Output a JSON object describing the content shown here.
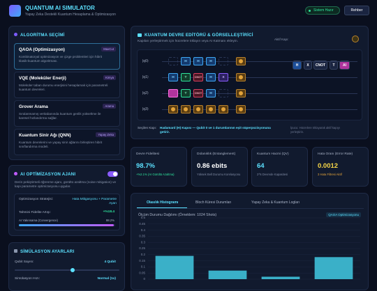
{
  "header": {
    "title": "QUANTUM AI SIMULATOR",
    "subtitle": "Yapay Zeka Destekli Kuantum Hesaplama & Optimizasyon",
    "status": "Sistem Hazır",
    "guide": "Rehber"
  },
  "algorithms": {
    "title": "ALGORİTMA SEÇİMİ",
    "items": [
      {
        "name": "QAOA (Optimizasyon)",
        "tag": "MaxCut",
        "desc": "Kombinatoryal optimizasyon ve çizge problemleri için hibrit klasik-kuantum algoritması."
      },
      {
        "name": "VQE (Moleküler Enerji)",
        "tag": "Kimya",
        "desc": "Moleküler taban durumu enerjisini hesaplamak için parametreli kuantum devreleri."
      },
      {
        "name": "Grover Arama",
        "tag": "Arama",
        "desc": "Sıralanmamış veritabanında kuantum genlik yükseltme ile karesel hızlandırma sağlar."
      },
      {
        "name": "Kuantum Sinir Ağı (QNN)",
        "tag": "Yapay Zeka",
        "desc": "Kuantum devrelerini ve yapay sinir ağlarını birleştiren hibrit sınıflandırma modeli."
      }
    ]
  },
  "agent": {
    "title": "AI OPTİMİZASYON AJANI",
    "desc": "Derin pekiştirmeli öğrenme ajanı, gürültü azaltma (noise mitigation) ve kapı parametre optimizasyonu uygular.",
    "strategy_label": "Optimizasyon Stratejisi:",
    "strategy": "Hata Mitigasyonu + Parametre Ayarı",
    "gain_label": "Tahmini Fidelite Artışı:",
    "gain": "+%18.4",
    "convergence_label": "AI Yakınsama (Convergence)",
    "convergence": 98.2,
    "convergence_label_value": "98.2%"
  },
  "settings": {
    "title": "SİMÜLASYON AYARLARI",
    "qubits_label": "Qubit Sayısı:",
    "qubits": "4 Qubit",
    "speed_label": "Simülasyon Hızı:",
    "speed": "Normal (1x)"
  },
  "circuit": {
    "title": "KUANTUM DEVRE EDİTÖRÜ & GÖRSELLEŞTİRİCİ",
    "subtitle": "Kapıları yerleştirmek için hücrelere tıklayın veya AI Katmanı ekleyin.",
    "active_label": "Aktif Kapı:",
    "toolbar": [
      "H",
      "X",
      "CNOT",
      "T",
      "AI"
    ],
    "rows": [
      {
        "label": "|q0⟩",
        "cells": [
          null,
          "H",
          "H",
          "H",
          null
        ]
      },
      {
        "label": "|q1⟩",
        "cells": [
          "H",
          "T",
          "CNOT",
          "H",
          "X"
        ]
      },
      {
        "label": "|q2⟩",
        "cells": [
          null,
          "T",
          "CNOT",
          "H",
          null
        ]
      },
      {
        "label": "|q3⟩",
        "cells": [
          null,
          null,
          null,
          null,
          null
        ]
      }
    ],
    "selected_label": "Seçilen Kapı:",
    "selected": "Hadamard (H) Kapısı — Qubit 0 ve 1 durumlarının eşit süperpozisyonuna getirir.",
    "hint": "İpucu: Hücrelere tıklayarak aktif kapıyı yerleştirin."
  },
  "metrics": [
    {
      "label": "Devre Fidelitesi",
      "value": "98.7%",
      "note": "+%2.1% (AI Gürültü Azaltma)"
    },
    {
      "label": "Dolanıklık (Entanglement)",
      "value": "0.86 ebits",
      "note": "Yüksek Bell Durumu Korelasyonu"
    },
    {
      "label": "Kuantum Hacmi (QV)",
      "value": "64",
      "note": "2^6 Devrede Kapasitesi"
    },
    {
      "label": "Hata Oranı (Error Rate)",
      "value": "0.0012",
      "note": "3 Hata Filtresi Aktif"
    }
  ],
  "tabs": [
    "Olasılık Histogramı",
    "Bloch Küresi Durumları",
    "Yapay Zeka & Kuantum Logları"
  ],
  "chart_data": {
    "type": "bar",
    "title": "Ölçüm Durumu Dağılımı (Örneklem: 1024 Shots)",
    "badge": "QAOA Optimizasyonu",
    "categories": [
      null,
      null,
      null,
      null
    ],
    "values": [
      0.19,
      0.07,
      0.02,
      0.18
    ],
    "color": "#3fc1d9",
    "ylim": [
      0,
      0.5
    ],
    "yticks": [
      0,
      0.05,
      0.1,
      0.15,
      0.2,
      0.25,
      0.3,
      0.35,
      0.4,
      0.45,
      0.5
    ],
    "grid": true
  }
}
